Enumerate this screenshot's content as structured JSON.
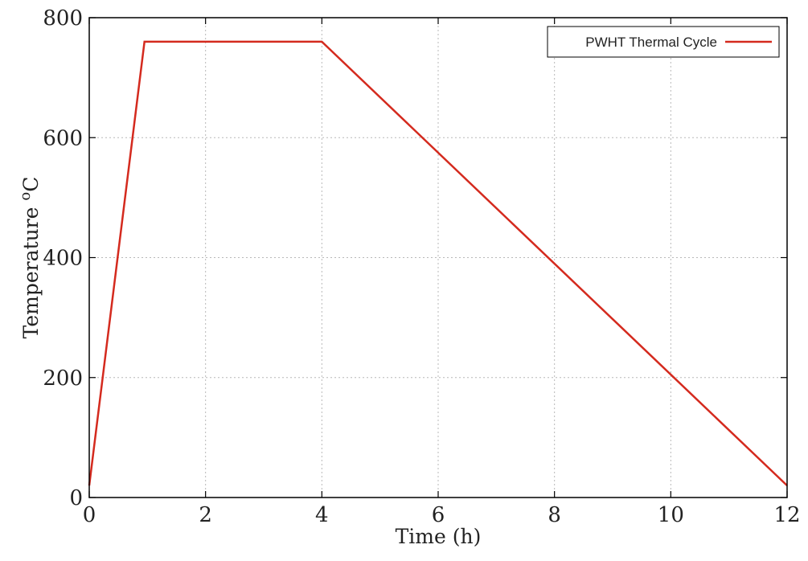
{
  "chart_data": {
    "type": "line",
    "xlabel": "Time (h)",
    "ylabel_main": "Temperature ",
    "ylabel_super": "o",
    "ylabel_unit": "C",
    "xlim": [
      0,
      12
    ],
    "ylim": [
      0,
      800
    ],
    "x_ticks": [
      0,
      2,
      4,
      6,
      8,
      10,
      12
    ],
    "y_ticks": [
      0,
      200,
      400,
      600,
      800
    ],
    "grid": true,
    "legend_position": "top-right",
    "series": [
      {
        "name": "PWHT Thermal Cycle",
        "color": "#d42a1e",
        "x": [
          0,
          0.95,
          4,
          12
        ],
        "y": [
          20,
          760,
          760,
          20
        ]
      }
    ]
  }
}
